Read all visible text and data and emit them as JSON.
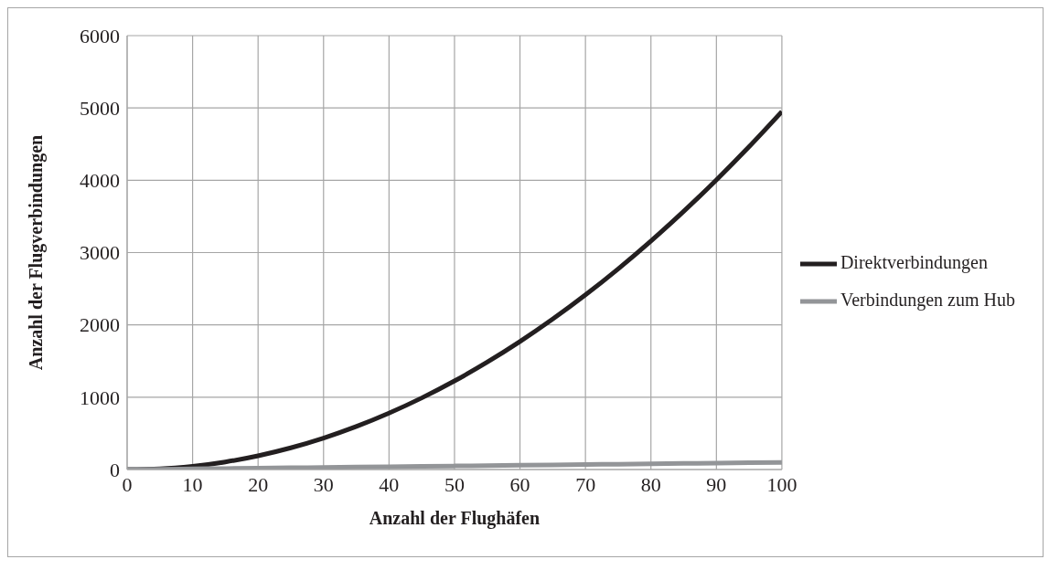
{
  "chart_data": {
    "type": "line",
    "xlabel": "Anzahl der Flughäfen",
    "ylabel": "Anzahl  der Flugverbindungen",
    "x": [
      0,
      5,
      10,
      15,
      20,
      25,
      30,
      35,
      40,
      45,
      50,
      55,
      60,
      65,
      70,
      75,
      80,
      85,
      90,
      95,
      100
    ],
    "series": [
      {
        "name": "Direktverbindungen",
        "color": "#231f20",
        "values": [
          0,
          10,
          45,
          105,
          190,
          300,
          435,
          595,
          780,
          990,
          1225,
          1485,
          1770,
          2080,
          2415,
          2775,
          3160,
          3570,
          4005,
          4465,
          4950
        ]
      },
      {
        "name": "Verbindungen zum Hub",
        "color": "#939598",
        "values": [
          0,
          4,
          9,
          14,
          19,
          24,
          29,
          34,
          39,
          44,
          49,
          54,
          59,
          64,
          69,
          74,
          79,
          84,
          89,
          94,
          99
        ]
      }
    ],
    "xlim": [
      0,
      100
    ],
    "xticks": [
      0,
      10,
      20,
      30,
      40,
      50,
      60,
      70,
      80,
      90,
      100
    ],
    "ylim": [
      0,
      6000
    ],
    "yticks": [
      0,
      1000,
      2000,
      3000,
      4000,
      5000,
      6000
    ],
    "grid": true,
    "legend": "right",
    "marker": "none",
    "line_style": "solid"
  }
}
